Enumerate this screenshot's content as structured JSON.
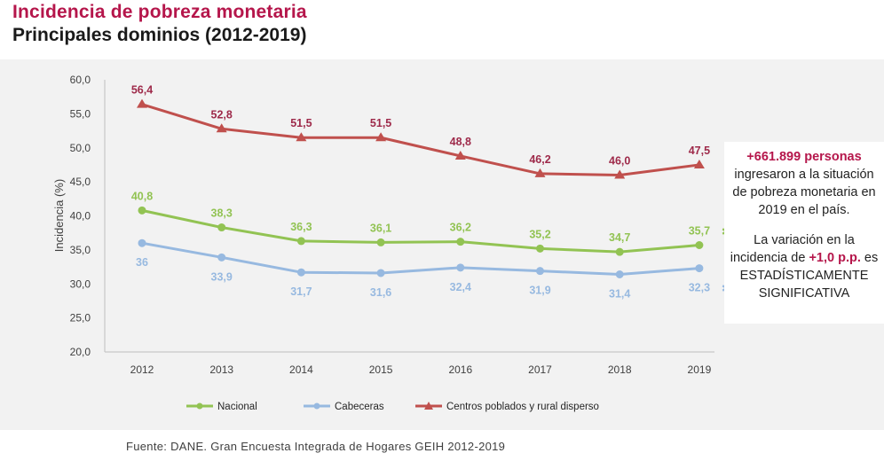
{
  "title": "Incidencia de pobreza monetaria",
  "subtitle": "Principales dominios (2012-2019)",
  "source": "Fuente: DANE. Gran Encuesta Integrada de Hogares GEIH 2012-2019",
  "note": {
    "line1_highlight": "+661.899 personas",
    "line1_rest": "ingresaron a la situación de pobreza monetaria en 2019 en el país.",
    "line2_pre": "La variación en la incidencia de",
    "line2_highlight": "+1,0 p.p.",
    "line2_post": "es ESTADÍSTICAMENTE SIGNIFICATIVA"
  },
  "chart_data": {
    "type": "line",
    "ylabel": "Incidencia (%)",
    "xlabel": "",
    "ylim": [
      20,
      60
    ],
    "yticks": [
      "20,0",
      "25,0",
      "30,0",
      "35,0",
      "40,0",
      "45,0",
      "50,0",
      "55,0",
      "60,0"
    ],
    "categories": [
      "2012",
      "2013",
      "2014",
      "2015",
      "2016",
      "2017",
      "2018",
      "2019"
    ],
    "legend_position": "bottom",
    "grid": false,
    "series": [
      {
        "name": "Nacional",
        "color": "#92c353",
        "marker": "circle",
        "values": [
          40.8,
          38.3,
          36.3,
          36.1,
          36.2,
          35.2,
          34.7,
          35.7
        ],
        "labels": [
          "40,8",
          "38,3",
          "36,3",
          "36,1",
          "36,2",
          "35,2",
          "34,7",
          "35,7"
        ],
        "label_position": "above",
        "last_label_star": true
      },
      {
        "name": "Cabeceras",
        "color": "#97b9e0",
        "marker": "circle",
        "values": [
          36.0,
          33.9,
          31.7,
          31.6,
          32.4,
          31.9,
          31.4,
          32.3
        ],
        "labels": [
          "36",
          "33,9",
          "31,7",
          "31,6",
          "32,4",
          "31,9",
          "31,4",
          "32,3"
        ],
        "label_position": "below",
        "last_label_star": true
      },
      {
        "name": "Centros poblados y rural disperso",
        "color": "#c0504d",
        "label_color": "#9e2a4a",
        "marker": "triangle",
        "values": [
          56.4,
          52.8,
          51.5,
          51.5,
          48.8,
          46.2,
          46.0,
          47.5
        ],
        "labels": [
          "56,4",
          "52,8",
          "51,5",
          "51,5",
          "48,8",
          "46,2",
          "46,0",
          "47,5"
        ],
        "label_position": "above",
        "last_label_star": false
      }
    ]
  }
}
